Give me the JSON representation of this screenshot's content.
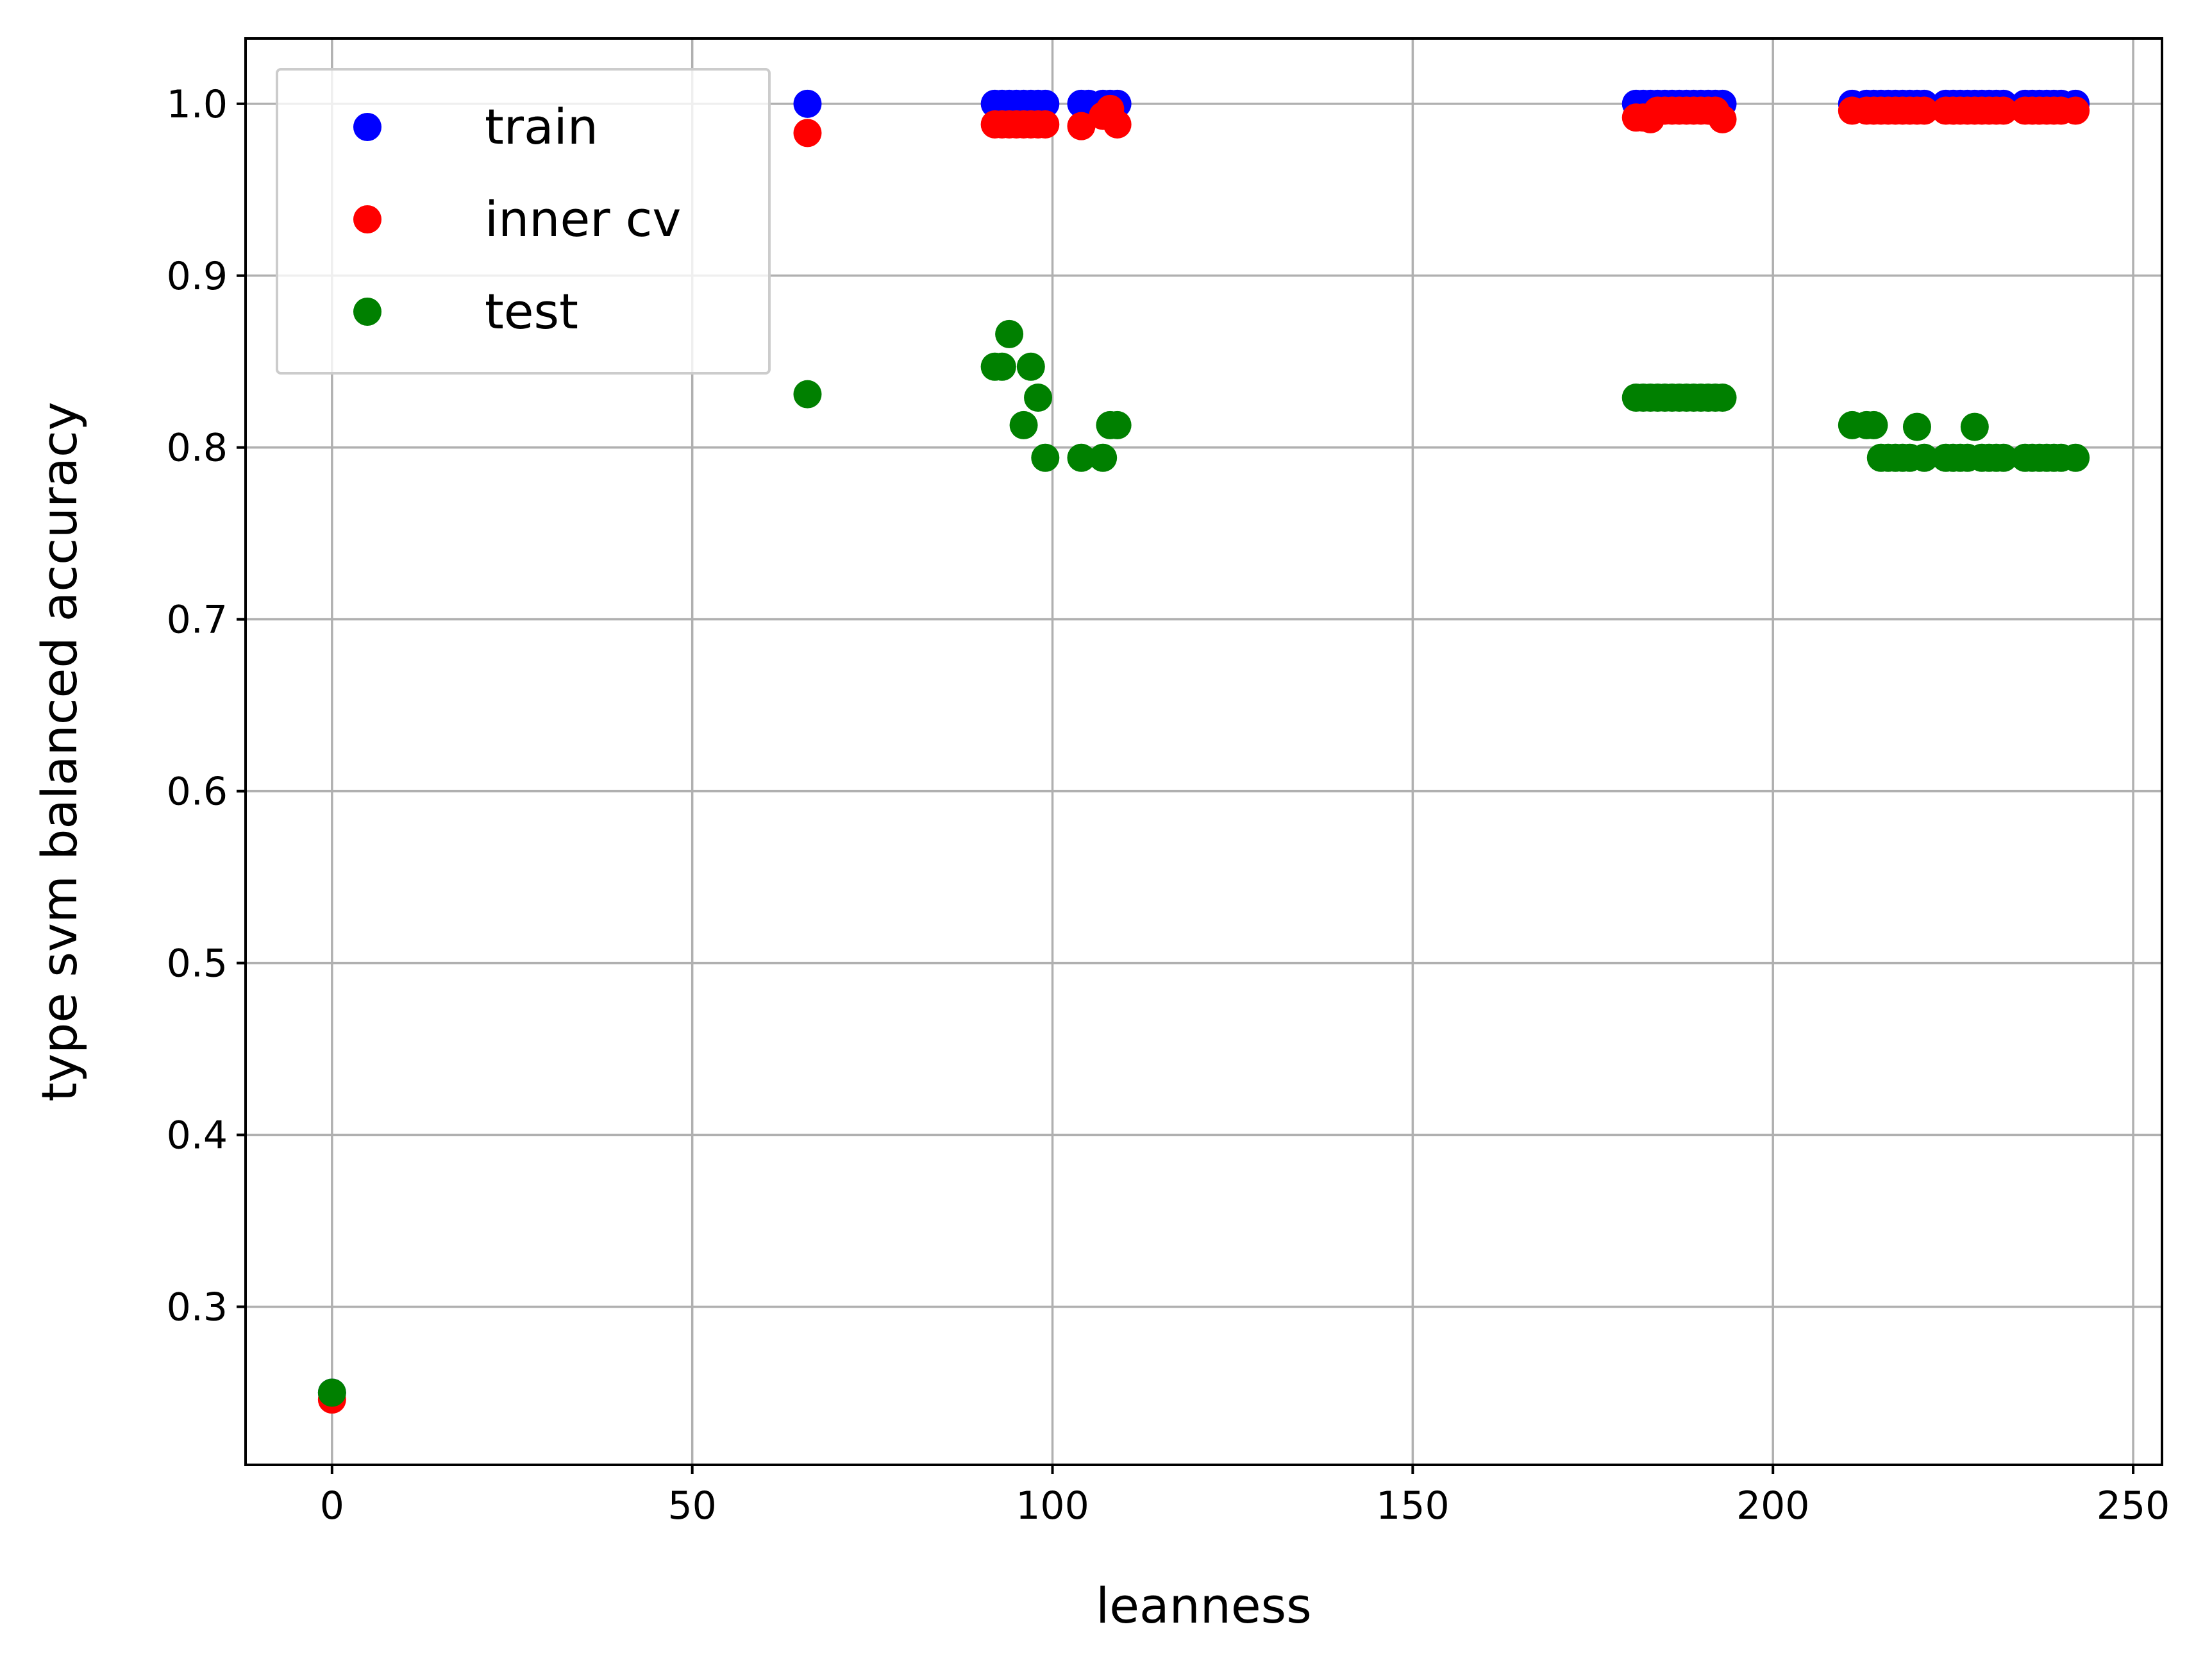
{
  "chart_data": {
    "type": "scatter",
    "title": "",
    "xlabel": "leanness",
    "ylabel": "type svm balanced accuracy",
    "xlim": [
      -12,
      254
    ],
    "ylim": [
      0.208,
      1.038
    ],
    "xticks": [
      0,
      50,
      100,
      150,
      200,
      250
    ],
    "yticks": [
      0.3,
      0.4,
      0.5,
      0.6,
      0.7,
      0.8,
      0.9,
      1.0
    ],
    "xtick_labels": [
      "0",
      "50",
      "100",
      "150",
      "200",
      "250"
    ],
    "ytick_labels": [
      "0.3",
      "0.4",
      "0.5",
      "0.6",
      "0.7",
      "0.8",
      "0.9",
      "1.0"
    ],
    "grid": true,
    "legend_position": "top-left",
    "series": [
      {
        "name": "train",
        "color": "#0000ff",
        "points": [
          [
            0,
            0.25
          ],
          [
            66,
            1.0
          ],
          [
            92,
            1.0
          ],
          [
            93,
            1.0
          ],
          [
            94,
            1.0
          ],
          [
            95,
            1.0
          ],
          [
            96,
            1.0
          ],
          [
            97,
            1.0
          ],
          [
            98,
            1.0
          ],
          [
            99,
            1.0
          ],
          [
            104,
            1.0
          ],
          [
            105,
            1.0
          ],
          [
            107,
            1.0
          ],
          [
            108,
            1.0
          ],
          [
            109,
            1.0
          ],
          [
            181,
            1.0
          ],
          [
            182,
            1.0
          ],
          [
            183,
            1.0
          ],
          [
            184,
            1.0
          ],
          [
            185,
            1.0
          ],
          [
            186,
            1.0
          ],
          [
            187,
            1.0
          ],
          [
            188,
            1.0
          ],
          [
            189,
            1.0
          ],
          [
            190,
            1.0
          ],
          [
            191,
            1.0
          ],
          [
            192,
            1.0
          ],
          [
            193,
            1.0
          ],
          [
            211,
            1.0
          ],
          [
            213,
            1.0
          ],
          [
            214,
            1.0
          ],
          [
            215,
            1.0
          ],
          [
            216,
            1.0
          ],
          [
            217,
            1.0
          ],
          [
            218,
            1.0
          ],
          [
            219,
            1.0
          ],
          [
            220,
            1.0
          ],
          [
            221,
            1.0
          ],
          [
            224,
            1.0
          ],
          [
            225,
            1.0
          ],
          [
            226,
            1.0
          ],
          [
            227,
            1.0
          ],
          [
            228,
            1.0
          ],
          [
            229,
            1.0
          ],
          [
            230,
            1.0
          ],
          [
            231,
            1.0
          ],
          [
            232,
            1.0
          ],
          [
            235,
            1.0
          ],
          [
            236,
            1.0
          ],
          [
            237,
            1.0
          ],
          [
            238,
            1.0
          ],
          [
            239,
            1.0
          ],
          [
            240,
            1.0
          ],
          [
            242,
            1.0
          ]
        ]
      },
      {
        "name": "inner cv",
        "color": "#ff0000",
        "points": [
          [
            0,
            0.246
          ],
          [
            66,
            0.983
          ],
          [
            92,
            0.988
          ],
          [
            93,
            0.988
          ],
          [
            94,
            0.988
          ],
          [
            95,
            0.988
          ],
          [
            96,
            0.988
          ],
          [
            97,
            0.988
          ],
          [
            98,
            0.988
          ],
          [
            99,
            0.988
          ],
          [
            104,
            0.987
          ],
          [
            107,
            0.993
          ],
          [
            108,
            0.997
          ],
          [
            109,
            0.988
          ],
          [
            181,
            0.992
          ],
          [
            182,
            0.992
          ],
          [
            183,
            0.991
          ],
          [
            184,
            0.996
          ],
          [
            185,
            0.996
          ],
          [
            186,
            0.996
          ],
          [
            187,
            0.996
          ],
          [
            188,
            0.996
          ],
          [
            189,
            0.996
          ],
          [
            190,
            0.996
          ],
          [
            191,
            0.996
          ],
          [
            192,
            0.996
          ],
          [
            193,
            0.991
          ],
          [
            211,
            0.996
          ],
          [
            213,
            0.996
          ],
          [
            214,
            0.996
          ],
          [
            215,
            0.996
          ],
          [
            216,
            0.996
          ],
          [
            217,
            0.996
          ],
          [
            218,
            0.996
          ],
          [
            219,
            0.996
          ],
          [
            220,
            0.996
          ],
          [
            221,
            0.996
          ],
          [
            224,
            0.996
          ],
          [
            225,
            0.996
          ],
          [
            226,
            0.996
          ],
          [
            227,
            0.996
          ],
          [
            228,
            0.996
          ],
          [
            229,
            0.996
          ],
          [
            230,
            0.996
          ],
          [
            231,
            0.996
          ],
          [
            232,
            0.996
          ],
          [
            235,
            0.996
          ],
          [
            236,
            0.996
          ],
          [
            237,
            0.996
          ],
          [
            238,
            0.996
          ],
          [
            239,
            0.996
          ],
          [
            240,
            0.996
          ],
          [
            242,
            0.996
          ]
        ]
      },
      {
        "name": "test",
        "color": "#008000",
        "points": [
          [
            0,
            0.25
          ],
          [
            66,
            0.831
          ],
          [
            92,
            0.847
          ],
          [
            93,
            0.847
          ],
          [
            94,
            0.866
          ],
          [
            96,
            0.813
          ],
          [
            97,
            0.847
          ],
          [
            98,
            0.829
          ],
          [
            99,
            0.794
          ],
          [
            104,
            0.794
          ],
          [
            107,
            0.794
          ],
          [
            108,
            0.813
          ],
          [
            109,
            0.813
          ],
          [
            181,
            0.829
          ],
          [
            182,
            0.829
          ],
          [
            183,
            0.829
          ],
          [
            184,
            0.829
          ],
          [
            185,
            0.829
          ],
          [
            186,
            0.829
          ],
          [
            187,
            0.829
          ],
          [
            188,
            0.829
          ],
          [
            189,
            0.829
          ],
          [
            190,
            0.829
          ],
          [
            191,
            0.829
          ],
          [
            192,
            0.829
          ],
          [
            193,
            0.829
          ],
          [
            211,
            0.813
          ],
          [
            213,
            0.813
          ],
          [
            214,
            0.813
          ],
          [
            215,
            0.794
          ],
          [
            216,
            0.794
          ],
          [
            217,
            0.794
          ],
          [
            218,
            0.794
          ],
          [
            219,
            0.794
          ],
          [
            220,
            0.812
          ],
          [
            221,
            0.794
          ],
          [
            224,
            0.794
          ],
          [
            225,
            0.794
          ],
          [
            226,
            0.794
          ],
          [
            227,
            0.794
          ],
          [
            228,
            0.812
          ],
          [
            229,
            0.794
          ],
          [
            230,
            0.794
          ],
          [
            231,
            0.794
          ],
          [
            232,
            0.794
          ],
          [
            235,
            0.794
          ],
          [
            236,
            0.794
          ],
          [
            237,
            0.794
          ],
          [
            238,
            0.794
          ],
          [
            239,
            0.794
          ],
          [
            240,
            0.794
          ],
          [
            242,
            0.794
          ]
        ]
      }
    ]
  }
}
